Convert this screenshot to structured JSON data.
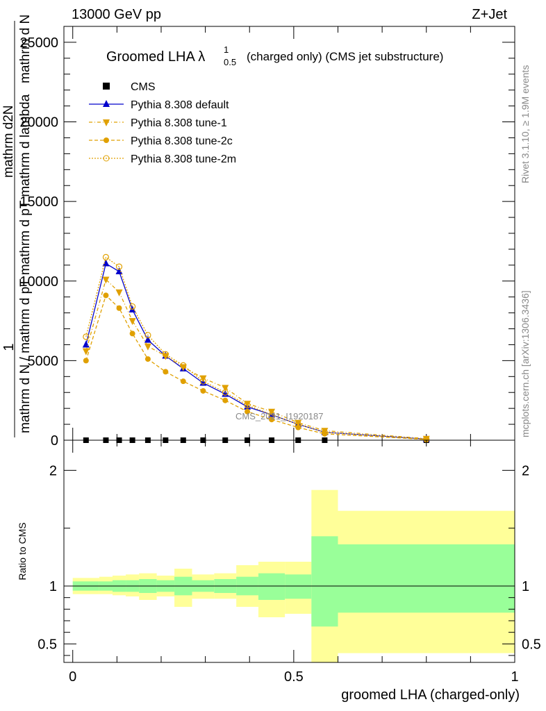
{
  "header": {
    "left": "13000 GeV pp",
    "right": "Z+Jet"
  },
  "side_labels": {
    "rivet": "Rivet 3.1.10, ≥ 1.9M events",
    "mcplots": "mcplots.cern.ch [arXiv:1306.3436]"
  },
  "watermark": "CMS_2021_I1920187",
  "chart_data": [
    {
      "type": "line",
      "title": "Groomed LHA λ",
      "title_sup": "1",
      "title_sub": "0.5",
      "title_suffix": "(charged only) (CMS jet substructure)",
      "ylabel_parts": [
        "1",
        "mathrm d N / mathrm d p",
        "T",
        " mathrm d p",
        "T",
        " mathrm d lambda",
        "mathrm d",
        "2",
        "N",
        "mathrm d N"
      ],
      "ylim": [
        0,
        26000
      ],
      "xlim": [
        -0.02,
        1.0
      ],
      "yticks": [
        {
          "v": 0,
          "label": "0"
        },
        {
          "v": 5000,
          "label": "5000"
        },
        {
          "v": 10000,
          "label": "10000"
        },
        {
          "v": 15000,
          "label": "15000"
        },
        {
          "v": 20000,
          "label": "20000"
        },
        {
          "v": 25000,
          "label": "25000"
        }
      ],
      "x": [
        0.03,
        0.075,
        0.105,
        0.135,
        0.17,
        0.21,
        0.25,
        0.295,
        0.345,
        0.395,
        0.45,
        0.51,
        0.57,
        0.8
      ],
      "series": [
        {
          "name": "CMS",
          "style": "data",
          "color": "#000000",
          "values": [
            0,
            0,
            0,
            0,
            0,
            0,
            0,
            0,
            0,
            0,
            0,
            0,
            0,
            0
          ]
        },
        {
          "name": "Pythia 8.308 default",
          "style": "triangle",
          "color": "#0000cc",
          "values": [
            6000,
            11100,
            10600,
            8200,
            6300,
            5300,
            4500,
            3600,
            2900,
            2100,
            1600,
            1000,
            500,
            70
          ]
        },
        {
          "name": "Pythia 8.308 tune-1",
          "style": "triangle-down",
          "color": "#e0a000",
          "values": [
            5600,
            10100,
            9300,
            7500,
            5900,
            5300,
            4600,
            3900,
            3300,
            2300,
            1800,
            1100,
            600,
            100
          ]
        },
        {
          "name": "Pythia 8.308 tune-2c",
          "style": "circle",
          "color": "#e0a000",
          "values": [
            5000,
            9100,
            8300,
            6700,
            5100,
            4300,
            3700,
            3100,
            2500,
            1800,
            1300,
            800,
            400,
            50
          ]
        },
        {
          "name": "Pythia 8.308 tune-2m",
          "style": "circle-open",
          "color": "#e0a000",
          "values": [
            6500,
            11500,
            10900,
            8400,
            6600,
            5400,
            4700,
            3700,
            3000,
            2200,
            1600,
            1000,
            500,
            60
          ]
        }
      ]
    },
    {
      "type": "area",
      "ylabel": "Ratio to CMS",
      "xlabel": "groomed LHA (charged-only)",
      "ylim": [
        0.34,
        2.26
      ],
      "xlim": [
        -0.02,
        1.0
      ],
      "yticks": [
        {
          "v": 0.5,
          "label": "0.5"
        },
        {
          "v": 1,
          "label": "1"
        },
        {
          "v": 2,
          "label": "2"
        }
      ],
      "xticks": [
        {
          "v": 0,
          "label": "0"
        },
        {
          "v": 0.5,
          "label": "0.5"
        },
        {
          "v": 1,
          "label": "1"
        }
      ],
      "bins": [
        {
          "x0": 0.0,
          "x1": 0.06,
          "g_lo": 0.96,
          "g_hi": 1.04,
          "y_lo": 0.93,
          "y_hi": 1.07
        },
        {
          "x0": 0.06,
          "x1": 0.09,
          "g_lo": 0.96,
          "g_hi": 1.04,
          "y_lo": 0.93,
          "y_hi": 1.08
        },
        {
          "x0": 0.09,
          "x1": 0.12,
          "g_lo": 0.95,
          "g_hi": 1.05,
          "y_lo": 0.92,
          "y_hi": 1.09
        },
        {
          "x0": 0.12,
          "x1": 0.15,
          "g_lo": 0.95,
          "g_hi": 1.05,
          "y_lo": 0.91,
          "y_hi": 1.1
        },
        {
          "x0": 0.15,
          "x1": 0.19,
          "g_lo": 0.94,
          "g_hi": 1.06,
          "y_lo": 0.88,
          "y_hi": 1.11
        },
        {
          "x0": 0.19,
          "x1": 0.23,
          "g_lo": 0.95,
          "g_hi": 1.05,
          "y_lo": 0.91,
          "y_hi": 1.09
        },
        {
          "x0": 0.23,
          "x1": 0.27,
          "g_lo": 0.92,
          "g_hi": 1.08,
          "y_lo": 0.82,
          "y_hi": 1.15
        },
        {
          "x0": 0.27,
          "x1": 0.32,
          "g_lo": 0.95,
          "g_hi": 1.05,
          "y_lo": 0.89,
          "y_hi": 1.1
        },
        {
          "x0": 0.32,
          "x1": 0.37,
          "g_lo": 0.94,
          "g_hi": 1.06,
          "y_lo": 0.89,
          "y_hi": 1.11
        },
        {
          "x0": 0.37,
          "x1": 0.42,
          "g_lo": 0.92,
          "g_hi": 1.08,
          "y_lo": 0.82,
          "y_hi": 1.18
        },
        {
          "x0": 0.42,
          "x1": 0.48,
          "g_lo": 0.88,
          "g_hi": 1.11,
          "y_lo": 0.73,
          "y_hi": 1.21
        },
        {
          "x0": 0.48,
          "x1": 0.54,
          "g_lo": 0.89,
          "g_hi": 1.1,
          "y_lo": 0.76,
          "y_hi": 1.21
        },
        {
          "x0": 0.54,
          "x1": 0.6,
          "g_lo": 0.65,
          "g_hi": 1.43,
          "y_lo": 0.34,
          "y_hi": 1.83
        },
        {
          "x0": 0.6,
          "x1": 1.0,
          "g_lo": 0.77,
          "g_hi": 1.36,
          "y_lo": 0.42,
          "y_hi": 1.65
        }
      ]
    }
  ],
  "colors": {
    "band_green": "#99ff99",
    "band_yellow": "#ffff99"
  }
}
